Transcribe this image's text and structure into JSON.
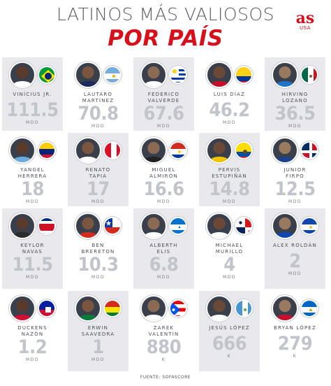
{
  "header": {
    "title_line1": "LATINOS MÁS VALIOSOS",
    "title_line2": "POR PAÍS",
    "logo": "as",
    "logo_sub": "USA"
  },
  "players": [
    {
      "name_line1": "VINÍCIUS JR.",
      "name_line2": "",
      "value": "111.5",
      "unit": "MDD",
      "flag": "brazil-flag-icon",
      "jersey": "#ffffff"
    },
    {
      "name_line1": "LAUTARO",
      "name_line2": "MARTÍNEZ",
      "value": "70.8",
      "unit": "MDD",
      "flag": "argentina-flag-icon",
      "jersey": "#1b2a5c"
    },
    {
      "name_line1": "FEDERICO",
      "name_line2": "VALVERDE",
      "value": "67.6",
      "unit": "MDD",
      "flag": "uruguay-flag-icon",
      "jersey": "#ffffff"
    },
    {
      "name_line1": "LUIS DÍAZ",
      "name_line2": "",
      "value": "46.2",
      "unit": "MDD",
      "flag": "colombia-flag-icon",
      "jersey": "#c8102e"
    },
    {
      "name_line1": "HIRVING",
      "name_line2": "LOZANO",
      "value": "36.5",
      "unit": "MDD",
      "flag": "mexico-flag-icon",
      "jersey": "#1d74c8"
    },
    {
      "name_line1": "YANGEL",
      "name_line2": "HERRERA",
      "value": "18",
      "unit": "MDD",
      "flag": "venezuela-flag-icon",
      "jersey": "#6cabdd"
    },
    {
      "name_line1": "RENATO",
      "name_line2": "TAPIA",
      "value": "17",
      "unit": "MDD",
      "flag": "peru-flag-icon",
      "jersey": "#ffffff"
    },
    {
      "name_line1": "MIGUEL",
      "name_line2": "ALMIRÓN",
      "value": "16.6",
      "unit": "MDD",
      "flag": "paraguay-flag-icon",
      "jersey": "#222222"
    },
    {
      "name_line1": "PERVIS",
      "name_line2": "ESTUPIÑÁN",
      "value": "14.8",
      "unit": "MDD",
      "flag": "ecuador-flag-icon",
      "jersey": "#f1c400"
    },
    {
      "name_line1": "JUNIOR",
      "name_line2": "FIRPO",
      "value": "12.5",
      "unit": "MDD",
      "flag": "dominican-republic-flag-icon",
      "jersey": "#1d428a"
    },
    {
      "name_line1": "KEYLOR",
      "name_line2": "NAVAS",
      "value": "11.5",
      "unit": "MDD",
      "flag": "costa-rica-flag-icon",
      "jersey": "#2b2b2b"
    },
    {
      "name_line1": "BEN",
      "name_line2": "BRERETON",
      "value": "10.3",
      "unit": "MDD",
      "flag": "chile-flag-icon",
      "jersey": "#d52b1e"
    },
    {
      "name_line1": "ALBERTH",
      "name_line2": "ELIS",
      "value": "6.8",
      "unit": "MDD",
      "flag": "honduras-flag-icon",
      "jersey": "#ffffff"
    },
    {
      "name_line1": "MICHAEL",
      "name_line2": "MURILLO",
      "value": "4",
      "unit": "MDD",
      "flag": "panama-flag-icon",
      "jersey": "#ffffff"
    },
    {
      "name_line1": "ALEX ROLDÁN",
      "name_line2": "",
      "value": "2",
      "unit": "MDD",
      "flag": "el-salvador-flag-icon",
      "jersey": "#0f47af"
    },
    {
      "name_line1": "DUCKENS",
      "name_line2": "NAZÓN",
      "value": "1.2",
      "unit": "MDD",
      "flag": "haiti-flag-icon",
      "jersey": "#d21034"
    },
    {
      "name_line1": "ERWIN",
      "name_line2": "SAAVEDRA",
      "value": "1",
      "unit": "MDD",
      "flag": "bolivia-flag-icon",
      "jersey": "#0a7a3a"
    },
    {
      "name_line1": "ZAREK",
      "name_line2": "VALENTÍN",
      "value": "880",
      "unit": "K",
      "flag": "puerto-rico-flag-icon",
      "jersey": "#ffffff"
    },
    {
      "name_line1": "JESÚS LÓPEZ",
      "name_line2": "",
      "value": "666",
      "unit": "K",
      "flag": "guatemala-flag-icon",
      "jersey": "#ffffff"
    },
    {
      "name_line1": "BRYAN LÓPEZ",
      "name_line2": "",
      "value": "279",
      "unit": "K",
      "flag": "nicaragua-flag-icon",
      "jersey": "#c8102e"
    }
  ],
  "footer": {
    "source": "FUENTE: SOFASCORE"
  }
}
